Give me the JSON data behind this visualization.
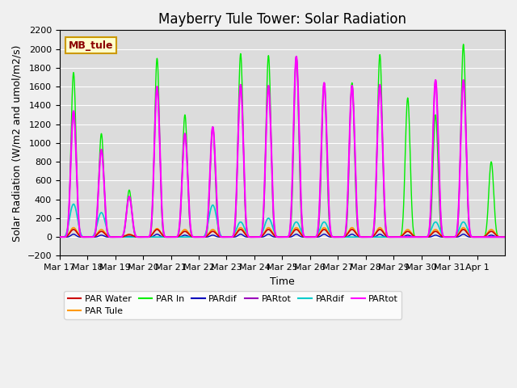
{
  "title": "Mayberry Tule Tower: Solar Radiation",
  "ylabel": "Solar Radiation (W/m2 and umol/m2/s)",
  "xlabel": "Time",
  "ylim": [
    -200,
    2200
  ],
  "annotation": "MB_tule",
  "xtick_labels": [
    "Mar 17",
    "Mar 18",
    "Mar 19",
    "Mar 20",
    "Mar 21",
    "Mar 22",
    "Mar 23",
    "Mar 24",
    "Mar 25",
    "Mar 26",
    "Mar 27",
    "Mar 28",
    "Mar 29",
    "Mar 30",
    "Mar 31",
    "Apr 1"
  ],
  "plot_bg_color": "#dcdcdc",
  "title_fontsize": 12,
  "label_fontsize": 9,
  "tick_fontsize": 8,
  "n_days": 16,
  "pts_per_day": 96,
  "day_peaks": [
    1750,
    1100,
    500,
    1900,
    1300,
    1170,
    1950,
    1930,
    1920,
    1640,
    1640,
    1940,
    1480,
    1300,
    2050,
    800
  ],
  "magenta_peaks": [
    1340,
    930,
    430,
    1600,
    1100,
    1170,
    1620,
    1610,
    1920,
    1640,
    1610,
    1620,
    0,
    1670,
    1670,
    0
  ],
  "cyan_peaks": [
    350,
    260,
    0,
    0,
    0,
    340,
    160,
    200,
    160,
    160,
    0,
    0,
    0,
    160,
    160,
    0
  ],
  "orange_peaks": [
    100,
    80,
    30,
    90,
    80,
    80,
    100,
    100,
    100,
    100,
    100,
    100,
    80,
    80,
    100,
    80
  ],
  "red_peaks": [
    80,
    60,
    25,
    80,
    60,
    60,
    80,
    80,
    80,
    80,
    80,
    80,
    60,
    60,
    80,
    60
  ],
  "purple_peaks": [
    1340,
    930,
    430,
    1600,
    1100,
    1170,
    1620,
    1610,
    1920,
    1640,
    1610,
    1620,
    0,
    1670,
    1670,
    0
  ],
  "blue_peaks": [
    30,
    20,
    8,
    30,
    20,
    20,
    30,
    30,
    30,
    30,
    30,
    30,
    20,
    20,
    30,
    20
  ]
}
